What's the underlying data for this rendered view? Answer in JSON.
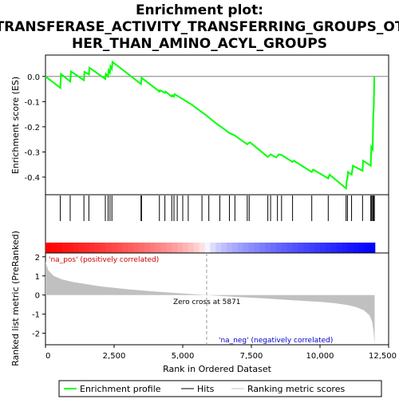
{
  "chart_data": {
    "type": "line",
    "title_lines": [
      "Enrichment plot:",
      "TRANSFERASE_ACTIVITY_TRANSFERRING_GROUPS_OT",
      "HER_THAN_AMINO_ACYL_GROUPS"
    ],
    "top_panel": {
      "ylabel": "Enrichment score (ES)",
      "ylim": [
        -0.47,
        0.085
      ],
      "yticks": [
        0.0,
        -0.1,
        -0.2,
        -0.3,
        -0.4
      ],
      "ytick_labels": [
        "0.0",
        "-0.1",
        "-0.2",
        "-0.3",
        "-0.4"
      ],
      "series": [
        {
          "name": "Enrichment profile",
          "color": "#00ff00",
          "x": [
            0,
            540,
            560,
            900,
            930,
            1400,
            1420,
            1580,
            1600,
            2180,
            2200,
            2280,
            2300,
            2350,
            2370,
            2420,
            2440,
            3480,
            3500,
            4150,
            4170,
            4350,
            4370,
            4600,
            4620,
            4680,
            4700,
            5000,
            5300,
            5800,
            6200,
            6700,
            6900,
            7350,
            7400,
            7450,
            8100,
            8200,
            8400,
            8500,
            8600,
            9000,
            9050,
            9700,
            9750,
            10300,
            10350,
            10950,
            10970,
            11000,
            11020,
            11150,
            11200,
            11550,
            11570,
            11850,
            11870,
            11920,
            11940,
            11960,
            11980
          ],
          "y": [
            0.0,
            -0.045,
            0.01,
            -0.02,
            0.02,
            -0.015,
            0.018,
            0.008,
            0.035,
            -0.01,
            0.01,
            0.0,
            0.025,
            0.015,
            0.04,
            0.03,
            0.058,
            -0.03,
            -0.005,
            -0.06,
            -0.055,
            -0.065,
            -0.06,
            -0.08,
            -0.075,
            -0.08,
            -0.07,
            -0.09,
            -0.11,
            -0.15,
            -0.185,
            -0.225,
            -0.235,
            -0.27,
            -0.265,
            -0.262,
            -0.32,
            -0.31,
            -0.322,
            -0.31,
            -0.312,
            -0.34,
            -0.335,
            -0.38,
            -0.37,
            -0.405,
            -0.39,
            -0.445,
            -0.415,
            -0.405,
            -0.38,
            -0.39,
            -0.355,
            -0.375,
            -0.335,
            -0.355,
            -0.28,
            -0.29,
            -0.16,
            -0.12,
            0.0
          ]
        }
      ]
    },
    "hits": [
      540,
      900,
      1400,
      1580,
      2180,
      2280,
      2350,
      2420,
      3480,
      3500,
      4150,
      4350,
      4600,
      4680,
      4800,
      5000,
      5200,
      5700,
      5950,
      6350,
      6700,
      6900,
      7350,
      7420,
      8100,
      8200,
      8450,
      8600,
      9000,
      9700,
      10300,
      10950,
      11000,
      11150,
      11550,
      11850,
      11880,
      11920,
      11950,
      11980
    ],
    "x_axis": {
      "label": "Rank in Ordered Dataset",
      "xlim": [
        0,
        12500
      ],
      "ticks": [
        0,
        2500,
        5000,
        7500,
        10000,
        12500
      ],
      "tick_labels": [
        "0",
        "2,500",
        "5,000",
        "7,500",
        "10,000",
        "12,500"
      ]
    },
    "bottom_panel": {
      "ylabel": "Ranked list metric (PreRanked)",
      "ylim": [
        -2.6,
        2.2
      ],
      "yticks": [
        2,
        1,
        0,
        -1,
        -2
      ],
      "ytick_labels": [
        "2",
        "1",
        "0",
        "-1",
        "-2"
      ],
      "metric_curve": {
        "x": [
          0,
          100,
          300,
          600,
          1000,
          2000,
          3000,
          4000,
          5000,
          5871,
          7000,
          8000,
          9000,
          10000,
          10500,
          11000,
          11300,
          11600,
          11800,
          11900,
          11960,
          11990
        ],
        "y": [
          1.75,
          1.3,
          1.0,
          0.82,
          0.68,
          0.45,
          0.3,
          0.18,
          0.08,
          0.0,
          -0.1,
          -0.18,
          -0.27,
          -0.36,
          -0.42,
          -0.52,
          -0.62,
          -0.8,
          -1.05,
          -1.4,
          -2.0,
          -2.6
        ]
      },
      "zero_cross_label": "Zero cross at 5871",
      "zero_cross": 5871,
      "na_pos_label": "'na_pos' (positively correlated)",
      "na_neg_label": "'na_neg' (negatively correlated)"
    },
    "legend": [
      {
        "label": "Enrichment profile",
        "color": "#00ff00"
      },
      {
        "label": "Hits",
        "color": "#000000"
      },
      {
        "label": "Ranking metric scores",
        "color": "#c0c0c0"
      }
    ],
    "colors": {
      "profile": "#00ff00",
      "metric_fill": "#c0c0c0",
      "pos_label": "#cc0000",
      "neg_label": "#0000cc",
      "bar_pos": "#ff0000",
      "bar_neg": "#0000ff"
    }
  }
}
